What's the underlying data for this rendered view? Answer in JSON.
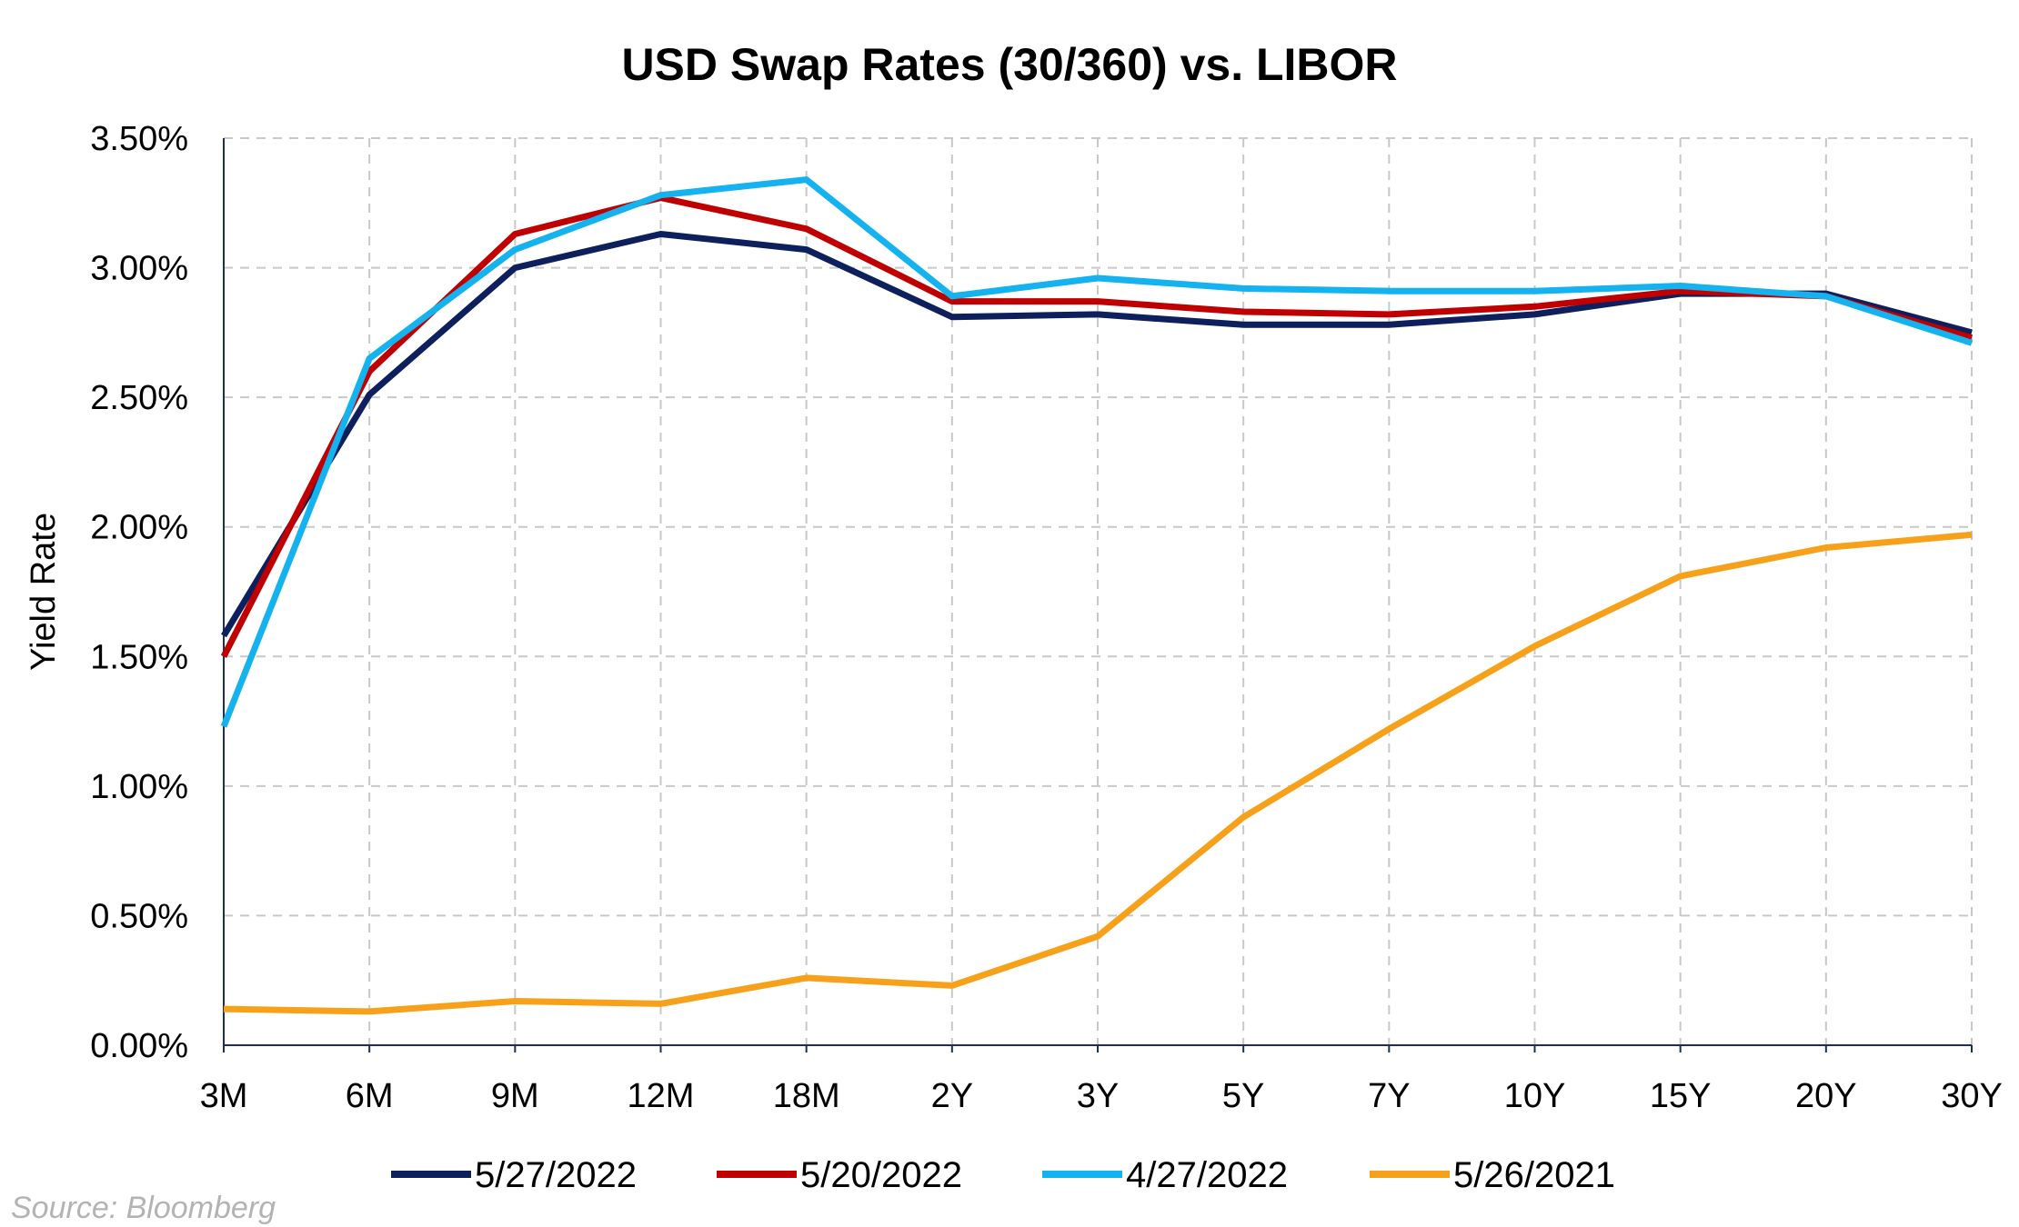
{
  "chart_data": {
    "type": "line",
    "title": "USD Swap Rates (30/360) vs. LIBOR",
    "xlabel": "",
    "ylabel": "Yield Rate",
    "categories": [
      "3M",
      "6M",
      "9M",
      "12M",
      "18M",
      "2Y",
      "3Y",
      "5Y",
      "7Y",
      "10Y",
      "15Y",
      "20Y",
      "30Y"
    ],
    "ylim": [
      0,
      3.5
    ],
    "yticks": [
      "0.00%",
      "0.50%",
      "1.00%",
      "1.50%",
      "2.00%",
      "2.50%",
      "3.00%",
      "3.50%"
    ],
    "ytick_values": [
      0,
      0.5,
      1.0,
      1.5,
      2.0,
      2.5,
      3.0,
      3.5
    ],
    "grid": true,
    "legend_position": "bottom",
    "series": [
      {
        "name": "5/27/2022",
        "color": "#0d1f5c",
        "values": [
          1.58,
          2.51,
          3.0,
          3.13,
          3.07,
          2.81,
          2.82,
          2.78,
          2.78,
          2.82,
          2.9,
          2.9,
          2.75
        ]
      },
      {
        "name": "5/20/2022",
        "color": "#c00000",
        "values": [
          1.5,
          2.6,
          3.13,
          3.27,
          3.15,
          2.87,
          2.87,
          2.83,
          2.82,
          2.85,
          2.91,
          2.89,
          2.73
        ]
      },
      {
        "name": "4/27/2022",
        "color": "#14b2ee",
        "values": [
          1.23,
          2.65,
          3.07,
          3.28,
          3.34,
          2.89,
          2.96,
          2.92,
          2.91,
          2.91,
          2.93,
          2.89,
          2.71
        ]
      },
      {
        "name": "5/26/2021",
        "color": "#f7a11a",
        "values": [
          0.14,
          0.13,
          0.17,
          0.16,
          0.26,
          0.23,
          0.42,
          0.88,
          1.22,
          1.54,
          1.81,
          1.92,
          1.97
        ]
      }
    ]
  },
  "source": "Source: Bloomberg"
}
